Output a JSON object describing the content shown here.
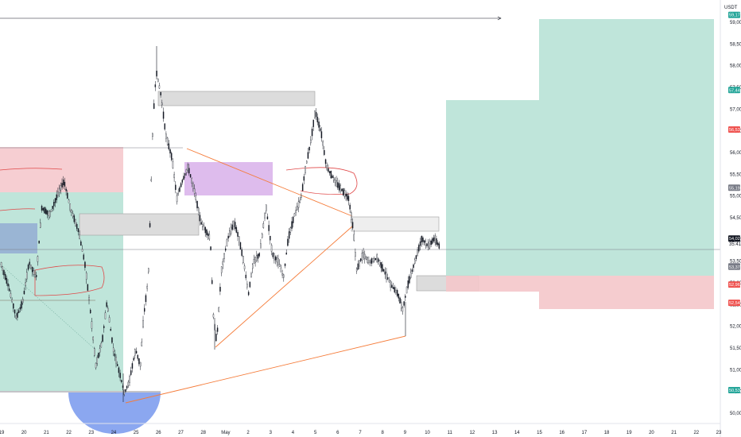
{
  "chart_data": {
    "type": "candlestick",
    "currency_label": "USDT",
    "colors": {
      "up": "#131722",
      "down": "#131722",
      "green_zone": "#b8e2d6",
      "red_zone": "#f4c6ca",
      "purple_zone": "#d8b0ea",
      "grey_zone": "#dcdcdc",
      "orange_line": "#f57c3a",
      "circle_fill": "#7e9dee",
      "blue_box": "#91a9d2"
    },
    "x_ticks": [
      "19",
      "20",
      "21",
      "22",
      "23",
      "24",
      "25",
      "26",
      "27",
      "28",
      "May",
      "2",
      "3",
      "4",
      "5",
      "6",
      "7",
      "8",
      "9",
      "10",
      "11",
      "12",
      "13",
      "14",
      "15",
      "16",
      "17",
      "18",
      "19",
      "20",
      "21",
      "22",
      "23"
    ],
    "y_ticks": [
      "59,00",
      "58,50",
      "58,00",
      "57,50",
      "57,00",
      "56,50",
      "56,00",
      "55,50",
      "55,00",
      "54,50",
      "54,00",
      "53,50",
      "53,00",
      "52,50",
      "52,00",
      "51,50",
      "51,00",
      "50,50",
      "50,00"
    ],
    "ylim": [
      49.8,
      59.3
    ],
    "price_badges": [
      {
        "label": "59,17",
        "value": 59.17,
        "color": "#26a69a"
      },
      {
        "label": "57,44",
        "value": 57.44,
        "color": "#26a69a"
      },
      {
        "label": "56,53",
        "value": 56.53,
        "color": "#ef5350"
      },
      {
        "label": "55,19",
        "value": 55.19,
        "color": "#787b86"
      },
      {
        "label": "54,02",
        "value": 54.02,
        "color": "#131722"
      },
      {
        "label": "53,38",
        "value": 53.38,
        "color": "#787b86"
      },
      {
        "label": "53,37",
        "value": 53.37,
        "color": "#787b86"
      },
      {
        "label": "52,96",
        "value": 52.96,
        "color": "#ef5350"
      },
      {
        "label": "52,54",
        "value": 52.54,
        "color": "#ef5350"
      },
      {
        "label": "50,53",
        "value": 50.53,
        "color": "#26a69a"
      }
    ],
    "last_price_sub": "35:41",
    "current_price": 54.02
  }
}
